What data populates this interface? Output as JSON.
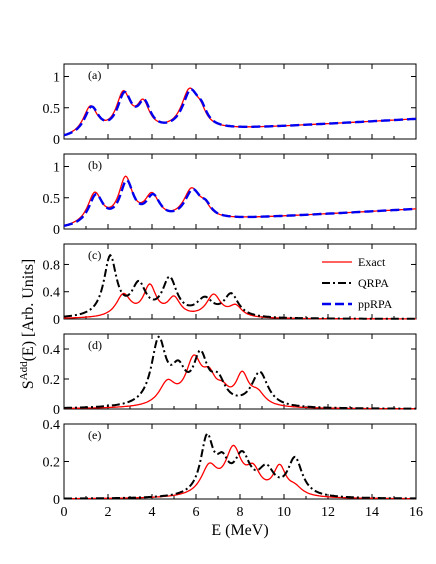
{
  "chart_data": {
    "type": "line",
    "xlabel": "E (MeV)",
    "ylabel_main": "S",
    "ylabel_sup": "Add",
    "ylabel_rest": "(E) [Arb. Units]",
    "xlim": [
      0,
      16
    ],
    "xticks": [
      "0",
      "2",
      "4",
      "6",
      "8",
      "10",
      "12",
      "14",
      "16"
    ],
    "legend": [
      {
        "key": "exact",
        "name": "Exact",
        "color": "#ff0000",
        "dash": "solid"
      },
      {
        "key": "qrpa",
        "name": "QRPA",
        "color": "#000000",
        "dash": "dashdot"
      },
      {
        "key": "pprpa",
        "name": "ppRPA",
        "color": "#0000ee",
        "dash": "dashed"
      }
    ],
    "panels": [
      {
        "label": "(a)",
        "ylim": [
          0,
          1.2
        ],
        "yticks": [
          "0",
          "0.5",
          "1"
        ],
        "series": [
          {
            "key": "exact",
            "peaks": [
              [
                1.2,
                0.4,
                0.45
              ],
              [
                2.7,
                0.4,
                0.62
              ],
              [
                3.6,
                0.35,
                0.42
              ],
              [
                5.7,
                0.45,
                0.62
              ],
              [
                6.2,
                0.3,
                0.2
              ]
            ],
            "baseline": 0.04,
            "tail": 0.3,
            "tail_x0": 6.6,
            "tail_w": 0.7
          },
          {
            "key": "pprpa",
            "peaks": [
              [
                1.25,
                0.4,
                0.44
              ],
              [
                2.75,
                0.4,
                0.6
              ],
              [
                3.65,
                0.35,
                0.42
              ],
              [
                5.75,
                0.45,
                0.6
              ],
              [
                6.25,
                0.3,
                0.2
              ]
            ],
            "baseline": 0.04,
            "tail": 0.3,
            "tail_x0": 6.6,
            "tail_w": 0.7
          }
        ]
      },
      {
        "label": "(b)",
        "ylim": [
          0,
          1.2
        ],
        "yticks": [
          "0",
          "0.5",
          "1"
        ],
        "series": [
          {
            "key": "exact",
            "peaks": [
              [
                1.4,
                0.4,
                0.5
              ],
              [
                2.8,
                0.38,
                0.7
              ],
              [
                4.0,
                0.4,
                0.4
              ],
              [
                5.8,
                0.45,
                0.48
              ],
              [
                6.4,
                0.3,
                0.15
              ]
            ],
            "baseline": 0.04,
            "tail": 0.22,
            "tail_x0": 6.6,
            "tail_w": 0.8
          },
          {
            "key": "pprpa",
            "peaks": [
              [
                1.45,
                0.4,
                0.47
              ],
              [
                2.85,
                0.38,
                0.64
              ],
              [
                4.05,
                0.4,
                0.38
              ],
              [
                5.85,
                0.45,
                0.46
              ],
              [
                6.45,
                0.3,
                0.15
              ]
            ],
            "baseline": 0.04,
            "tail": 0.22,
            "tail_x0": 6.6,
            "tail_w": 0.8
          }
        ]
      },
      {
        "label": "(c)",
        "ylim": [
          0,
          1.1
        ],
        "yticks": [
          "0",
          "0.4",
          "0.8"
        ],
        "series": [
          {
            "key": "exact",
            "peaks": [
              [
                2.7,
                0.4,
                0.33
              ],
              [
                3.9,
                0.35,
                0.45
              ],
              [
                5.0,
                0.35,
                0.27
              ],
              [
                6.8,
                0.4,
                0.33
              ],
              [
                7.8,
                0.35,
                0.16
              ]
            ],
            "baseline": 0.0,
            "tail": 0.04,
            "tail_x0": 8.5,
            "tail_w": 1.0
          },
          {
            "key": "qrpa",
            "peaks": [
              [
                2.1,
                0.35,
                0.88
              ],
              [
                3.4,
                0.4,
                0.45
              ],
              [
                4.8,
                0.4,
                0.55
              ],
              [
                6.4,
                0.45,
                0.25
              ],
              [
                7.6,
                0.4,
                0.33
              ]
            ],
            "baseline": 0.0,
            "tail": 0.05,
            "tail_x0": 8.8,
            "tail_w": 1.2
          }
        ]
      },
      {
        "label": "(d)",
        "ylim": [
          0,
          0.5
        ],
        "yticks": [
          "0",
          "0.2",
          "0.4"
        ],
        "series": [
          {
            "key": "exact",
            "peaks": [
              [
                4.7,
                0.45,
                0.15
              ],
              [
                5.9,
                0.45,
                0.3
              ],
              [
                6.6,
                0.35,
                0.15
              ],
              [
                7.2,
                0.35,
                0.08
              ],
              [
                8.1,
                0.35,
                0.2
              ],
              [
                8.8,
                0.4,
                0.08
              ]
            ],
            "baseline": 0.0,
            "tail": 0.02,
            "tail_x0": 9.5,
            "tail_w": 1.0
          },
          {
            "key": "qrpa",
            "peaks": [
              [
                4.3,
                0.4,
                0.43
              ],
              [
                5.2,
                0.4,
                0.2
              ],
              [
                6.2,
                0.4,
                0.31
              ],
              [
                7.0,
                0.4,
                0.15
              ],
              [
                8.9,
                0.45,
                0.23
              ]
            ],
            "baseline": 0.0,
            "tail": 0.02,
            "tail_x0": 9.8,
            "tail_w": 1.0
          }
        ]
      },
      {
        "label": "(e)",
        "ylim": [
          0,
          0.4
        ],
        "yticks": [
          "0",
          "0.2",
          "0.4"
        ],
        "series": [
          {
            "key": "exact",
            "peaks": [
              [
                6.6,
                0.45,
                0.15
              ],
              [
                7.7,
                0.45,
                0.24
              ],
              [
                8.6,
                0.4,
                0.12
              ],
              [
                9.8,
                0.35,
                0.15
              ],
              [
                10.5,
                0.4,
                0.04
              ]
            ],
            "baseline": 0.0,
            "tail": 0.02,
            "tail_x0": 11.0,
            "tail_w": 0.8
          },
          {
            "key": "qrpa",
            "peaks": [
              [
                6.5,
                0.35,
                0.3
              ],
              [
                7.2,
                0.35,
                0.14
              ],
              [
                8.1,
                0.45,
                0.2
              ],
              [
                9.2,
                0.45,
                0.13
              ],
              [
                10.5,
                0.4,
                0.2
              ]
            ],
            "baseline": 0.0,
            "tail": 0.03,
            "tail_x0": 11.2,
            "tail_w": 0.8
          }
        ]
      }
    ]
  }
}
